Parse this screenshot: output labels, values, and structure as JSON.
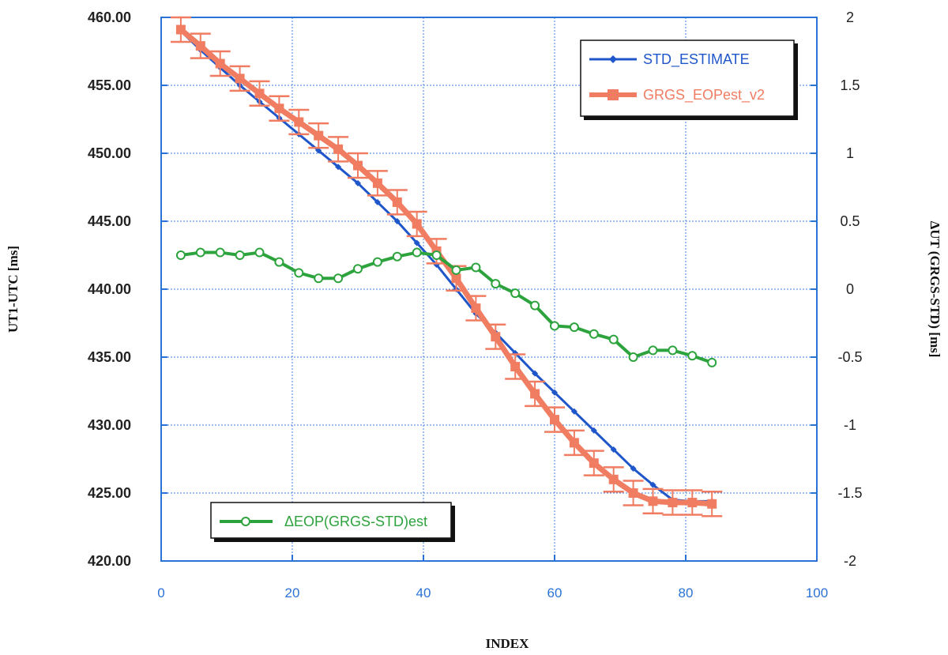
{
  "chart_data": {
    "type": "line",
    "xlabel": "INDEX",
    "ylabel_left": "UT1-UTC [ms]",
    "ylabel_right": "ΔUT (GRGS-STD) [ms]",
    "xlim": [
      0,
      100
    ],
    "ylim_left": [
      420,
      460
    ],
    "ylim_right": [
      -2,
      2
    ],
    "x_ticks": [
      "0",
      "20",
      "40",
      "60",
      "80",
      "100"
    ],
    "y_left_ticks": [
      "420.00",
      "425.00",
      "430.00",
      "435.00",
      "440.00",
      "445.00",
      "450.00",
      "455.00",
      "460.00"
    ],
    "y_right_ticks": [
      "-2",
      "-1.5",
      "-1",
      "-0.5",
      "0",
      "0.5",
      "1",
      "1.5",
      "2"
    ],
    "grid": true,
    "colors": {
      "std": "#1f56c9",
      "grgs": "#f07d62",
      "delta": "#2ca33c",
      "axis": "#2a72d6",
      "grid": "#3f7fe0"
    },
    "series": [
      {
        "name": "STD_ESTIMATE",
        "axis": "left",
        "x": [
          3,
          6,
          9,
          12,
          15,
          18,
          21,
          24,
          27,
          30,
          33,
          36,
          39,
          42,
          45,
          48,
          51,
          54,
          57,
          60,
          63,
          66,
          69,
          72,
          75,
          78,
          81,
          84
        ],
        "y": [
          459.0,
          457.6,
          456.3,
          455.0,
          453.8,
          452.6,
          451.4,
          450.2,
          449.0,
          447.8,
          446.4,
          445.0,
          443.4,
          441.8,
          440.0,
          438.2,
          436.8,
          435.3,
          433.8,
          432.4,
          431.0,
          429.6,
          428.2,
          426.8,
          425.6,
          424.5,
          424.4,
          424.4
        ]
      },
      {
        "name": "GRGS_EOPest_v2",
        "axis": "left",
        "x": [
          3,
          6,
          9,
          12,
          15,
          18,
          21,
          24,
          27,
          30,
          33,
          36,
          39,
          42,
          45,
          48,
          51,
          54,
          57,
          60,
          63,
          66,
          69,
          72,
          75,
          78,
          81,
          84
        ],
        "y": [
          459.1,
          457.9,
          456.6,
          455.5,
          454.4,
          453.3,
          452.3,
          451.3,
          450.3,
          449.1,
          447.8,
          446.4,
          444.8,
          442.8,
          440.8,
          438.6,
          436.5,
          434.3,
          432.3,
          430.4,
          428.7,
          427.2,
          426.0,
          425.0,
          424.4,
          424.3,
          424.3,
          424.2
        ],
        "error": 0.9
      },
      {
        "name": "ΔEOP(GRGS-STD)est",
        "axis": "right",
        "x": [
          3,
          6,
          9,
          12,
          15,
          18,
          21,
          24,
          27,
          30,
          33,
          36,
          39,
          42,
          45,
          48,
          51,
          54,
          57,
          60,
          63,
          66,
          69,
          72,
          75,
          78,
          81,
          84
        ],
        "y": [
          0.25,
          0.27,
          0.27,
          0.25,
          0.27,
          0.2,
          0.12,
          0.08,
          0.08,
          0.15,
          0.2,
          0.24,
          0.27,
          0.25,
          0.14,
          0.16,
          0.04,
          -0.03,
          -0.12,
          -0.27,
          -0.28,
          -0.33,
          -0.37,
          -0.5,
          -0.45,
          -0.45,
          -0.49,
          -0.54
        ]
      }
    ]
  }
}
